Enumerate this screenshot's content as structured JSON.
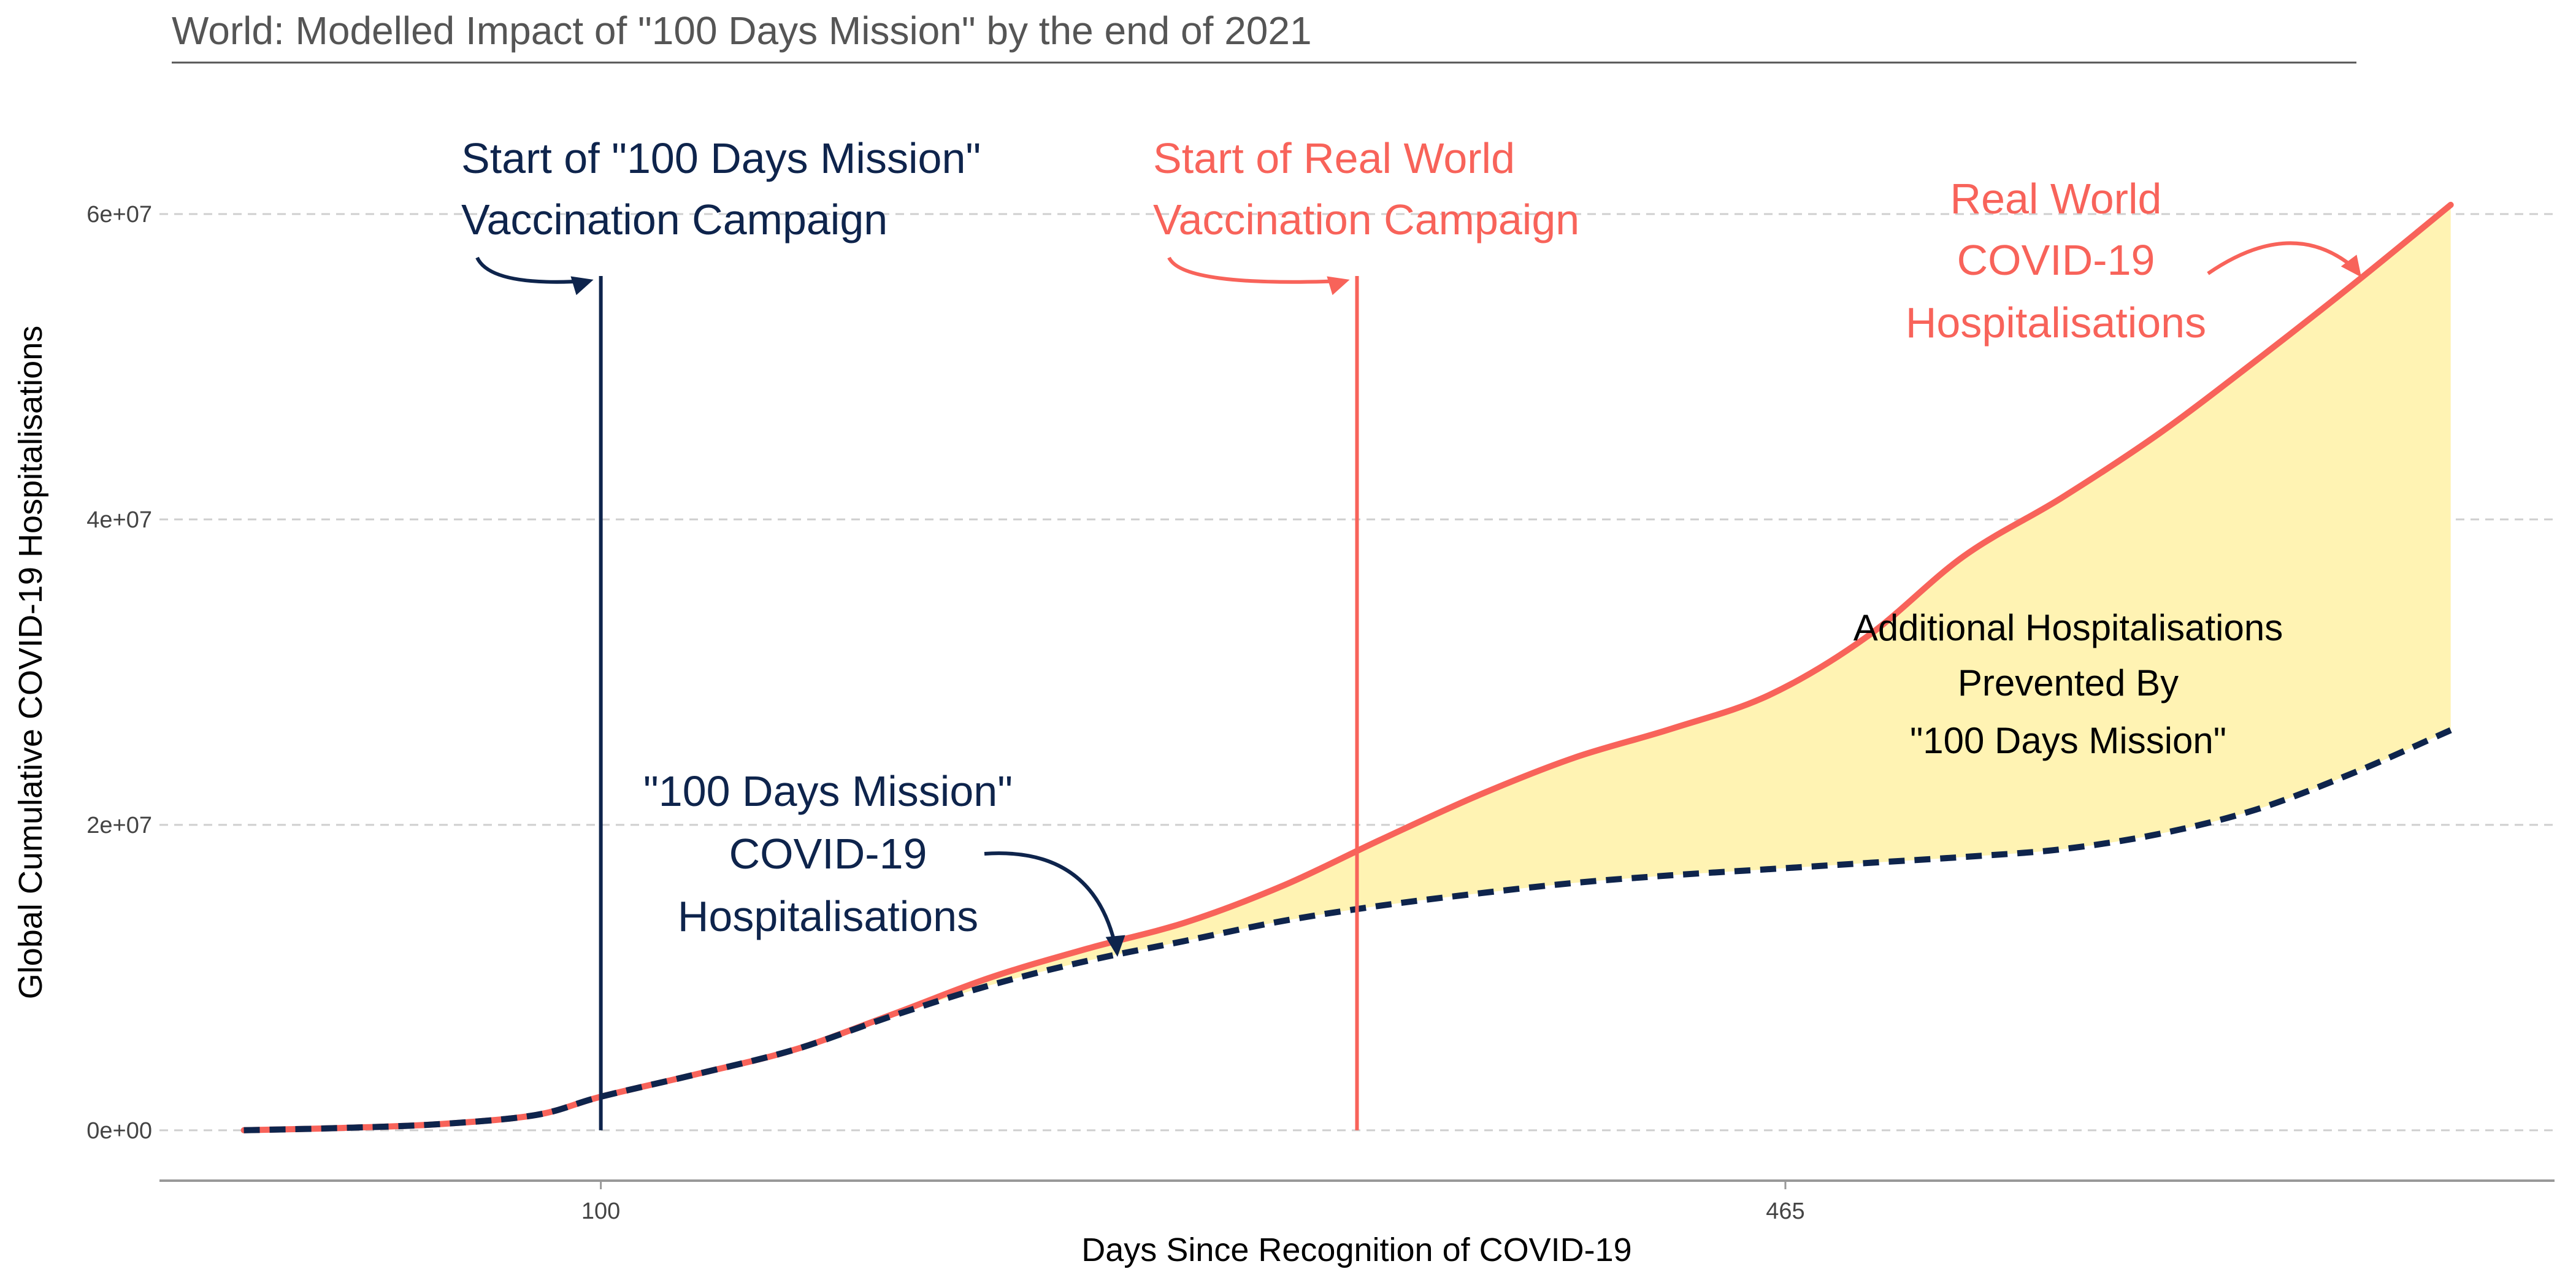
{
  "chart_data": {
    "type": "line",
    "title": "World: Modelled Impact of \"100 Days Mission\" by the end of 2021",
    "xlabel": "Days Since Recognition of COVID-19",
    "ylabel": "Global Cumulative COVID-19 Hospitalisations",
    "xlim": [
      -36,
      702
    ],
    "ylim": [
      -3300000,
      70000000
    ],
    "x_ticks": [
      {
        "value": 100,
        "label": "100"
      },
      {
        "value": 465,
        "label": "465"
      }
    ],
    "y_ticks": [
      {
        "value": 0,
        "label": "0e+00"
      },
      {
        "value": 20000000,
        "label": "2e+07"
      },
      {
        "value": 40000000,
        "label": "4e+07"
      },
      {
        "value": 60000000,
        "label": "6e+07"
      }
    ],
    "grid": "horizontal-dashed",
    "legend": "none",
    "series": [
      {
        "name": "Real World COVID-19 Hospitalisations",
        "color": "#F8635A",
        "style": "solid",
        "x": [
          -10,
          20,
          50,
          80,
          100,
          130,
          160,
          190,
          220,
          250,
          280,
          310,
          340,
          370,
          400,
          430,
          460,
          490,
          520,
          550,
          580,
          610,
          640,
          670
        ],
        "values": [
          0,
          150000,
          400000,
          1000000,
          2200000,
          3700000,
          5300000,
          7600000,
          10000000,
          11900000,
          13600000,
          16000000,
          19000000,
          21900000,
          24400000,
          26300000,
          28500000,
          32300000,
          37600000,
          41400000,
          45600000,
          50400000,
          55400000,
          60600000
        ]
      },
      {
        "name": "\"100 Days Mission\" COVID-19 Hospitalisations",
        "color": "#0E244C",
        "style": "dashed",
        "x": [
          -10,
          20,
          50,
          80,
          100,
          130,
          160,
          190,
          220,
          250,
          280,
          310,
          340,
          370,
          400,
          430,
          460,
          490,
          520,
          550,
          580,
          610,
          640,
          670
        ],
        "values": [
          0,
          150000,
          400000,
          1000000,
          2200000,
          3700000,
          5300000,
          7500000,
          9500000,
          11100000,
          12400000,
          13700000,
          14700000,
          15500000,
          16200000,
          16700000,
          17100000,
          17500000,
          17900000,
          18400000,
          19400000,
          21000000,
          23400000,
          26200000
        ]
      }
    ],
    "fill_between": {
      "color": "#FFF3B3",
      "label_lines": [
        "Additional Hospitalisations",
        "Prevented By",
        "\"100 Days Mission\""
      ]
    },
    "vlines": [
      {
        "x": 100,
        "color": "#0E244C",
        "label_lines": [
          "Start of \"100 Days Mission\"",
          "Vaccination Campaign"
        ]
      },
      {
        "x": 333,
        "color": "#F8635A",
        "label_lines": [
          "Start of Real World",
          "Vaccination Campaign"
        ]
      }
    ],
    "annotations": {
      "real_world_lines": [
        "Real World",
        "COVID-19",
        "Hospitalisations"
      ],
      "mission_lines": [
        "\"100 Days Mission\"",
        "COVID-19",
        "Hospitalisations"
      ]
    }
  }
}
